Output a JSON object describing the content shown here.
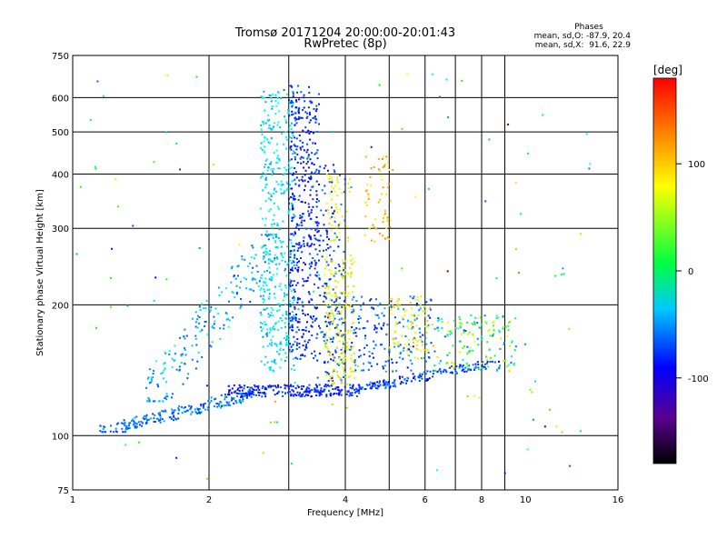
{
  "chart_data": {
    "type": "scatter",
    "title": "Tromsø 20171204 20:00:00-20:01:43",
    "subtitle": "RwPretec (8p)",
    "xlabel": "Frequency [MHz]",
    "ylabel": "Stationary phase Virtual Height [km]",
    "x_scale": "log",
    "y_scale": "log",
    "xlim": [
      1,
      16
    ],
    "ylim": [
      75,
      750
    ],
    "x_ticks": [
      1,
      2,
      4,
      6,
      8,
      10,
      16
    ],
    "y_ticks": [
      75,
      100,
      200,
      300,
      400,
      500,
      600,
      750
    ],
    "x_grid": [
      2,
      3,
      4,
      5,
      6,
      7,
      8,
      9
    ],
    "y_grid": [
      100,
      200,
      300,
      400,
      500,
      600
    ],
    "grid": true,
    "stats": {
      "heading": "Phases",
      "line1": "mean, sd,O: -87.9, 20.4",
      "line2": "mean, sd,X:  91.6, 22.9"
    },
    "colorbar": {
      "label": "[deg]",
      "range": [
        -180,
        180
      ],
      "ticks": [
        100,
        0,
        -100
      ]
    },
    "clusters": [
      {
        "name": "low_trace_blue",
        "n": 230,
        "x": [
          1.15,
          2.5
        ],
        "y": [
          102,
          125
        ],
        "c": [
          -125,
          -85
        ],
        "shape": "ramp"
      },
      {
        "name": "flat_trace_dark",
        "n": 240,
        "x": [
          2.2,
          4.3
        ],
        "y": [
          123,
          131
        ],
        "c": [
          -150,
          -110
        ],
        "shape": "box"
      },
      {
        "name": "flat_trace_right",
        "n": 160,
        "x": [
          4.3,
          8.8
        ],
        "y": [
          128,
          148
        ],
        "c": [
          -145,
          -90
        ],
        "shape": "ramp"
      },
      {
        "name": "rise_trace",
        "n": 220,
        "x": [
          1.45,
          2.9
        ],
        "y": [
          120,
          290
        ],
        "c": [
          -120,
          -60
        ],
        "shape": "ramp"
      },
      {
        "name": "f_column_light",
        "n": 420,
        "x": [
          2.6,
          3.1
        ],
        "y": [
          140,
          620
        ],
        "c": [
          -90,
          -40
        ],
        "shape": "box"
      },
      {
        "name": "f_column_dark",
        "n": 430,
        "x": [
          3.0,
          3.5
        ],
        "y": [
          150,
          640
        ],
        "c": [
          -150,
          -110
        ],
        "shape": "box"
      },
      {
        "name": "f_column_mid",
        "n": 200,
        "x": [
          3.45,
          4.0
        ],
        "y": [
          130,
          420
        ],
        "c": [
          -140,
          -100
        ],
        "shape": "box"
      },
      {
        "name": "yellow_column",
        "n": 190,
        "x": [
          3.6,
          4.2
        ],
        "y": [
          130,
          260
        ],
        "c": [
          70,
          120
        ],
        "shape": "box"
      },
      {
        "name": "orange_patch",
        "n": 60,
        "x": [
          4.4,
          5.1
        ],
        "y": [
          280,
          440
        ],
        "c": [
          90,
          140
        ],
        "shape": "box"
      },
      {
        "name": "yellow_patch_upper",
        "n": 50,
        "x": [
          3.6,
          4.1
        ],
        "y": [
          280,
          400
        ],
        "c": [
          80,
          115
        ],
        "shape": "box"
      },
      {
        "name": "mid_blue_cluster",
        "n": 170,
        "x": [
          4.1,
          6.2
        ],
        "y": [
          140,
          210
        ],
        "c": [
          -140,
          -80
        ],
        "shape": "box"
      },
      {
        "name": "yellow_mid_cluster",
        "n": 90,
        "x": [
          5.0,
          6.3
        ],
        "y": [
          150,
          210
        ],
        "c": [
          80,
          120
        ],
        "shape": "box"
      },
      {
        "name": "right_cluster",
        "n": 150,
        "x": [
          6.3,
          9.6
        ],
        "y": [
          140,
          190
        ],
        "c": [
          -120,
          110
        ],
        "shape": "box"
      },
      {
        "name": "sparse_scatter",
        "n": 110,
        "x": [
          1.0,
          14.0
        ],
        "y": [
          78,
          700
        ],
        "c": [
          -150,
          150
        ],
        "shape": "box"
      }
    ]
  }
}
